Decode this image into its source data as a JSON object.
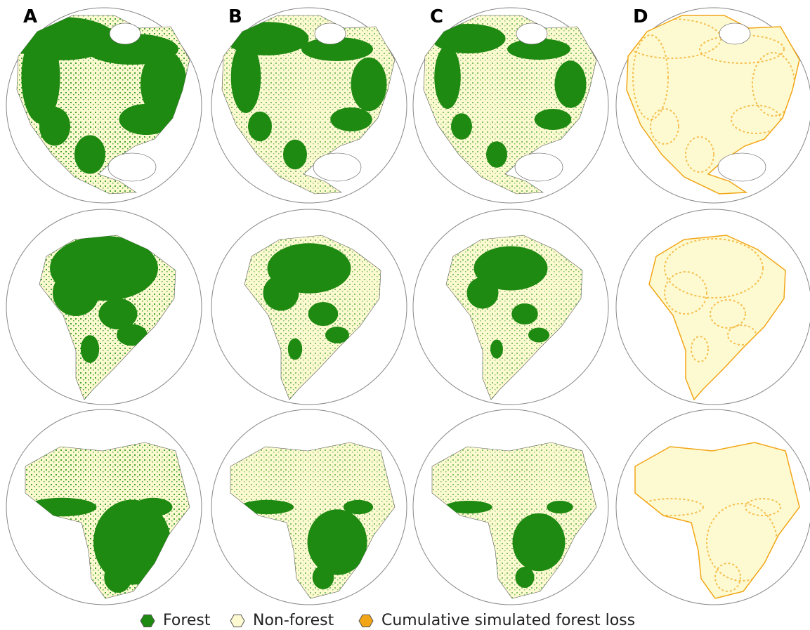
{
  "panels": [
    {
      "label": "A"
    },
    {
      "label": "B"
    },
    {
      "label": "C"
    },
    {
      "label": "D"
    }
  ],
  "legend": [
    {
      "label": "Forest",
      "color": "#1f8a12"
    },
    {
      "label": "Non-forest",
      "color": "#fdfad2"
    },
    {
      "label": "Cumulative simulated forest loss",
      "color": "#f2a516"
    }
  ]
}
